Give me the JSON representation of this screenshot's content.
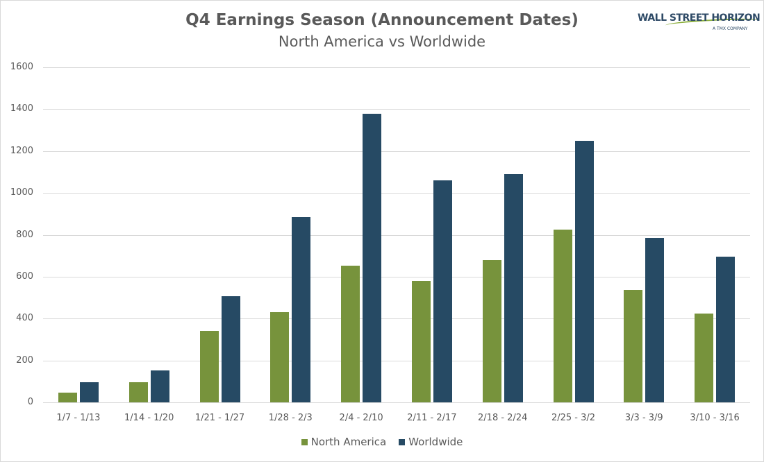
{
  "chart_data": {
    "type": "bar",
    "title": "Q4 Earnings Season (Announcement Dates)",
    "subtitle": "North America vs Worldwide",
    "xlabel": "",
    "ylabel": "",
    "ylim": [
      0,
      1600
    ],
    "yticks": [
      0,
      200,
      400,
      600,
      800,
      1000,
      1200,
      1400,
      1600
    ],
    "grid": true,
    "legend_position": "bottom",
    "categories": [
      "1/7 - 1/13",
      "1/14 - 1/20",
      "1/21 - 1/27",
      "1/28 - 2/3",
      "2/4 - 2/10",
      "2/11 - 2/17",
      "2/18 - 2/24",
      "2/25 - 3/2",
      "3/3 - 3/9",
      "3/10 - 3/16"
    ],
    "series": [
      {
        "name": "North America",
        "color": "#77933c",
        "values": [
          45,
          95,
          340,
          430,
          652,
          580,
          678,
          824,
          536,
          424
        ]
      },
      {
        "name": "Worldwide",
        "color": "#264a64",
        "values": [
          95,
          152,
          508,
          884,
          1378,
          1060,
          1090,
          1248,
          785,
          695
        ]
      }
    ]
  },
  "logo": {
    "name": "WALL STREET HORIZON",
    "tagline": "A TMX COMPANY"
  }
}
